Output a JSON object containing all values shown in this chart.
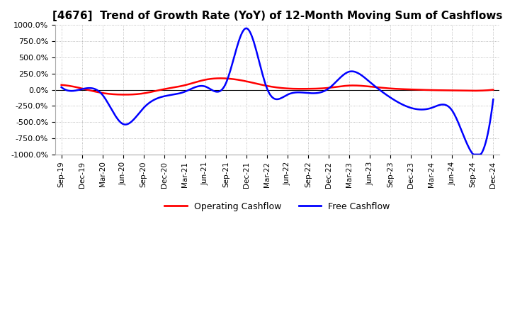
{
  "title": "[4676]  Trend of Growth Rate (YoY) of 12-Month Moving Sum of Cashflows",
  "title_fontsize": 11,
  "ylim": [
    -1000,
    1000
  ],
  "yticks": [
    -1000,
    -750,
    -500,
    -250,
    0,
    250,
    500,
    750,
    1000
  ],
  "yticklabels": [
    "-1000.0%",
    "-750.0%",
    "-500.0%",
    "-250.0%",
    "0.0%",
    "250.0%",
    "500.0%",
    "750.0%",
    "1000.0%"
  ],
  "legend_labels": [
    "Operating Cashflow",
    "Free Cashflow"
  ],
  "legend_colors": [
    "red",
    "blue"
  ],
  "grid_color": "#aaaaaa",
  "background_color": "#ffffff",
  "plot_bg_color": "#ffffff",
  "x_labels": [
    "Sep-19",
    "Dec-19",
    "Mar-20",
    "Jun-20",
    "Sep-20",
    "Dec-20",
    "Mar-21",
    "Jun-21",
    "Sep-21",
    "Dec-21",
    "Mar-22",
    "Jun-22",
    "Sep-22",
    "Dec-22",
    "Mar-23",
    "Jun-23",
    "Sep-23",
    "Dec-23",
    "Mar-24",
    "Jun-24",
    "Sep-24",
    "Dec-24"
  ],
  "operating_cf": [
    75,
    20,
    -50,
    -75,
    -55,
    10,
    70,
    155,
    175,
    130,
    60,
    20,
    15,
    30,
    65,
    50,
    20,
    5,
    -5,
    -10,
    -15,
    0
  ],
  "free_cf": [
    40,
    10,
    -80,
    -530,
    -280,
    -100,
    -30,
    50,
    100,
    950,
    20,
    -75,
    -50,
    20,
    280,
    120,
    -120,
    -280,
    -280,
    -320,
    -990,
    -150
  ]
}
